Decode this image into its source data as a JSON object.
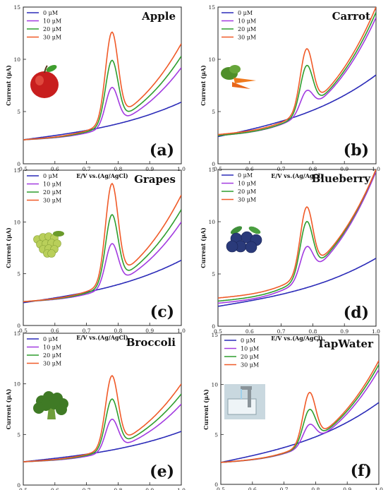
{
  "chart_data": [
    {
      "type": "line",
      "title": "Apple",
      "panel_label": "(a)",
      "xlabel": "E/V vs.(Ag/AgCl)",
      "ylabel": "Current (μA)",
      "xlim": [
        0.5,
        1.0
      ],
      "ylim": [
        0,
        15
      ],
      "xticks": [
        "0.5",
        "0.6",
        "0.7",
        "0.8",
        "0.9",
        "1.0"
      ],
      "yticks": [
        "0",
        "5",
        "10",
        "15"
      ],
      "legend_position": "top-left",
      "series": [
        {
          "name": "0 μM",
          "color": "#2b2bb8",
          "y_start": 2.3,
          "y_end": 5.9,
          "peak": 0
        },
        {
          "name": "10 μM",
          "color": "#a23be0",
          "y_start": 2.3,
          "y_end": 9.2,
          "peak": 7.3
        },
        {
          "name": "20 μM",
          "color": "#2e9e2e",
          "y_start": 2.3,
          "y_end": 10.3,
          "peak": 9.9
        },
        {
          "name": "30 μM",
          "color": "#f05a28",
          "y_start": 2.3,
          "y_end": 11.5,
          "peak": 12.6
        }
      ]
    },
    {
      "type": "line",
      "title": "Carrot",
      "panel_label": "(b)",
      "xlabel": "E/V vs.(Ag/AgCl)",
      "ylabel": "Current (μA)",
      "xlim": [
        0.5,
        1.0
      ],
      "ylim": [
        0,
        15
      ],
      "xticks": [
        "0.5",
        "0.6",
        "0.7",
        "0.8",
        "0.9",
        "1.0"
      ],
      "yticks": [
        "0",
        "5",
        "10",
        "15"
      ],
      "legend_position": "top-left",
      "series": [
        {
          "name": "0 μM",
          "color": "#2b2bb8",
          "y_start": 2.6,
          "y_end": 8.5,
          "peak": 0
        },
        {
          "name": "10 μM",
          "color": "#a23be0",
          "y_start": 2.7,
          "y_end": 14.0,
          "peak": 7.0
        },
        {
          "name": "20 μM",
          "color": "#2e9e2e",
          "y_start": 2.7,
          "y_end": 14.5,
          "peak": 9.4
        },
        {
          "name": "30 μM",
          "color": "#f05a28",
          "y_start": 2.8,
          "y_end": 15.0,
          "peak": 11.0
        }
      ]
    },
    {
      "type": "line",
      "title": "Grapes",
      "panel_label": "(c)",
      "xlabel": "E/V vs.(Ag/AgCl)",
      "ylabel": "Current (μA)",
      "xlim": [
        0.5,
        1.0
      ],
      "ylim": [
        0,
        15
      ],
      "xticks": [
        "0.5",
        "0.6",
        "0.7",
        "0.8",
        "0.9",
        "1.0"
      ],
      "yticks": [
        "0",
        "5",
        "10",
        "15"
      ],
      "legend_position": "top-left",
      "series": [
        {
          "name": "0 μM",
          "color": "#2b2bb8",
          "y_start": 2.2,
          "y_end": 6.3,
          "peak": 0
        },
        {
          "name": "10 μM",
          "color": "#a23be0",
          "y_start": 2.3,
          "y_end": 10.0,
          "peak": 7.9
        },
        {
          "name": "20 μM",
          "color": "#2e9e2e",
          "y_start": 2.3,
          "y_end": 11.2,
          "peak": 10.7
        },
        {
          "name": "30 μM",
          "color": "#f05a28",
          "y_start": 2.3,
          "y_end": 12.6,
          "peak": 13.7
        }
      ]
    },
    {
      "type": "line",
      "title": "Blueberry",
      "panel_label": "(d)",
      "xlabel": "E/V vs.(Ag/AgCl)",
      "ylabel": "Current (μA)",
      "xlim": [
        0.5,
        1.0
      ],
      "ylim": [
        0,
        15
      ],
      "xticks": [
        "0.5",
        "0.6",
        "0.7",
        "0.8",
        "0.9",
        "1.0"
      ],
      "yticks": [
        "0",
        "5",
        "10",
        "15"
      ],
      "legend_position": "top-left",
      "series": [
        {
          "name": "0 μM",
          "color": "#2b2bb8",
          "y_start": 1.9,
          "y_end": 6.5,
          "peak": 0
        },
        {
          "name": "10 μM",
          "color": "#a23be0",
          "y_start": 2.2,
          "y_end": 14.8,
          "peak": 7.6
        },
        {
          "name": "20 μM",
          "color": "#2e9e2e",
          "y_start": 2.4,
          "y_end": 15.0,
          "peak": 10.0
        },
        {
          "name": "30 μM",
          "color": "#f05a28",
          "y_start": 2.7,
          "y_end": 15.0,
          "peak": 11.4
        }
      ]
    },
    {
      "type": "line",
      "title": "Broccoli",
      "panel_label": "(e)",
      "xlabel": "E/V vs.(Ag/AgCl)",
      "ylabel": "Current (μA)",
      "xlim": [
        0.5,
        1.0
      ],
      "ylim": [
        0,
        15
      ],
      "xticks": [
        "0.5",
        "0.6",
        "0.7",
        "0.8",
        "0.9",
        "1.0"
      ],
      "yticks": [
        "0",
        "5",
        "10",
        "15"
      ],
      "legend_position": "top-left",
      "series": [
        {
          "name": "0 μM",
          "color": "#2b2bb8",
          "y_start": 2.3,
          "y_end": 5.3,
          "peak": 0
        },
        {
          "name": "10 μM",
          "color": "#a23be0",
          "y_start": 2.3,
          "y_end": 8.0,
          "peak": 6.5
        },
        {
          "name": "20 μM",
          "color": "#2e9e2e",
          "y_start": 2.3,
          "y_end": 9.0,
          "peak": 8.5
        },
        {
          "name": "30 μM",
          "color": "#f05a28",
          "y_start": 2.3,
          "y_end": 10.0,
          "peak": 10.8
        }
      ]
    },
    {
      "type": "line",
      "title": "TapWater",
      "panel_label": "(f)",
      "xlabel": "E/V vs.(Ag/AgCl)",
      "ylabel": "Current (μA)",
      "xlim": [
        0.5,
        1.0
      ],
      "ylim": [
        0,
        15
      ],
      "xticks": [
        "0.5",
        "0.6",
        "0.7",
        "0.8",
        "0.9",
        "1.0"
      ],
      "yticks": [
        "0",
        "5",
        "10",
        "15"
      ],
      "legend_position": "top-left",
      "series": [
        {
          "name": "0 μM",
          "color": "#2b2bb8",
          "y_start": 2.2,
          "y_end": 8.2,
          "peak": 0
        },
        {
          "name": "10 μM",
          "color": "#a23be0",
          "y_start": 2.2,
          "y_end": 11.5,
          "peak": 6.0
        },
        {
          "name": "20 μM",
          "color": "#2e9e2e",
          "y_start": 2.2,
          "y_end": 12.0,
          "peak": 7.5
        },
        {
          "name": "30 μM",
          "color": "#f05a28",
          "y_start": 2.2,
          "y_end": 12.4,
          "peak": 9.2
        }
      ]
    }
  ],
  "pictures": [
    "apple-icon",
    "carrot-icon",
    "grapes-icon",
    "blueberry-icon",
    "broccoli-icon",
    "tap-water-icon"
  ]
}
